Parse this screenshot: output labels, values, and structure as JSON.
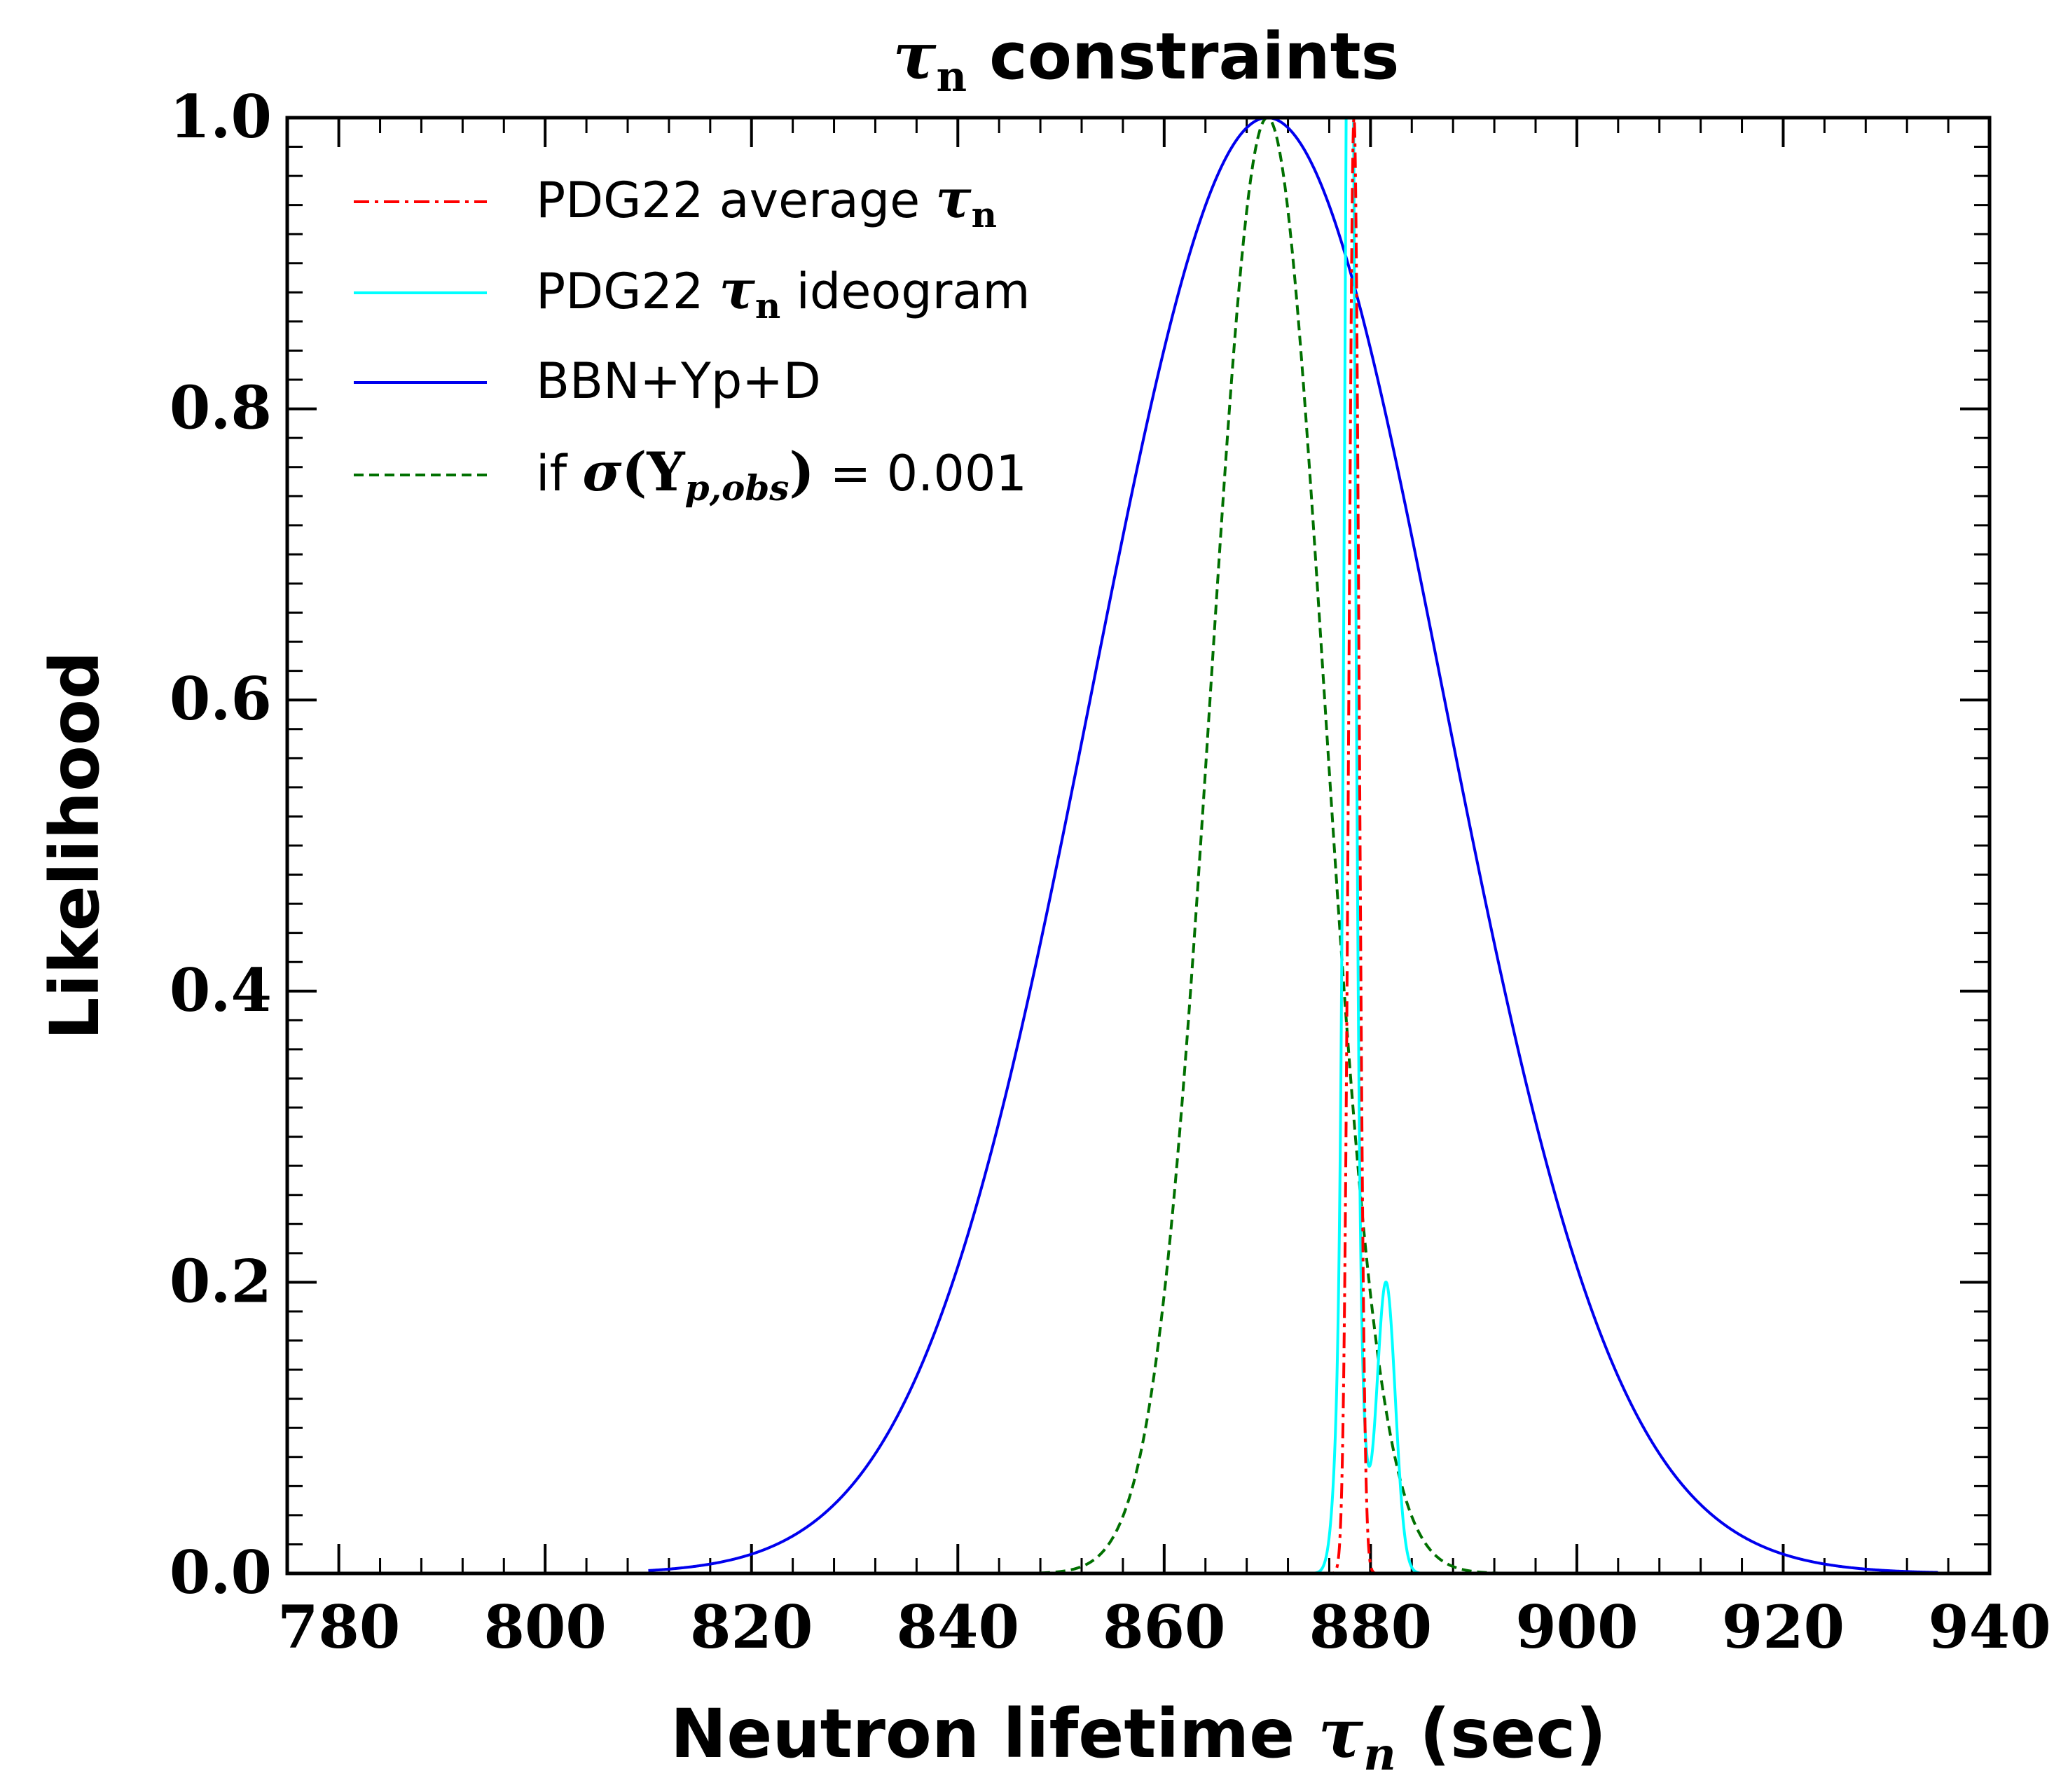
{
  "chart_data": {
    "type": "line",
    "title": "τn constraints",
    "title_parts": {
      "symbol": "τ",
      "subscript": "n",
      "rest": " constraints"
    },
    "xlabel": "Neutron lifetime τn (sec)",
    "xlabel_parts": {
      "pre": "Neutron lifetime ",
      "symbol": "τ",
      "subscript": "n",
      "post": " (sec)"
    },
    "ylabel": "Likelihood",
    "xlim": [
      775,
      940
    ],
    "ylim": [
      0.0,
      1.0
    ],
    "xticks": [
      780,
      800,
      820,
      840,
      860,
      880,
      900,
      920,
      940
    ],
    "yticks": [
      0.0,
      0.2,
      0.4,
      0.6,
      0.8,
      1.0
    ],
    "xtick_labels": [
      "780",
      "800",
      "820",
      "840",
      "860",
      "880",
      "900",
      "920",
      "940"
    ],
    "ytick_labels": [
      "0.0",
      "0.2",
      "0.4",
      "0.6",
      "0.8",
      "1.0"
    ],
    "grid": false,
    "legend_position": "top-left",
    "series": [
      {
        "name": "PDG22 average τn",
        "label_parts": {
          "pre": "PDG22 average ",
          "symbol": "τ",
          "subscript": "n",
          "post": ""
        },
        "color": "#ff0000",
        "style": "dashdot",
        "shape": "gaussian",
        "mean": 878.4,
        "sigma": 0.5,
        "peak": 1.0,
        "x_range": [
          875.0,
          882.0
        ]
      },
      {
        "name": "PDG22 τn ideogram",
        "label_parts": {
          "pre": "PDG22 ",
          "symbol": "τ",
          "subscript": "n",
          "post": " ideogram"
        },
        "color": "#00ffff",
        "style": "solid",
        "shape": "ideogram",
        "components": [
          {
            "mean": 878.0,
            "sigma": 0.45,
            "amp": 1.0
          },
          {
            "mean": 878.0,
            "sigma": 0.9,
            "amp": 0.3
          },
          {
            "mean": 881.5,
            "sigma": 0.9,
            "amp": 0.2
          }
        ],
        "x_range": [
          873.0,
          887.0
        ]
      },
      {
        "name": "BBN+Yp+D",
        "color": "#0000ee",
        "style": "solid",
        "shape": "gaussian",
        "mean": 870.0,
        "sigma": 17.0,
        "peak": 1.0,
        "x_range": [
          810.0,
          935.0
        ]
      },
      {
        "name": "if σ(Yp,obs) = 0.001",
        "label_parts": {
          "pre": "if ",
          "sigma": "σ",
          "open": "(",
          "Y": "Y",
          "sub": "p,obs",
          "close": ")",
          "post": " = 0.001"
        },
        "color": "#007000",
        "style": "dashed",
        "shape": "gaussian",
        "mean": 870.0,
        "sigma": 5.5,
        "peak": 1.0,
        "x_range": [
          845.0,
          895.0
        ]
      }
    ]
  }
}
